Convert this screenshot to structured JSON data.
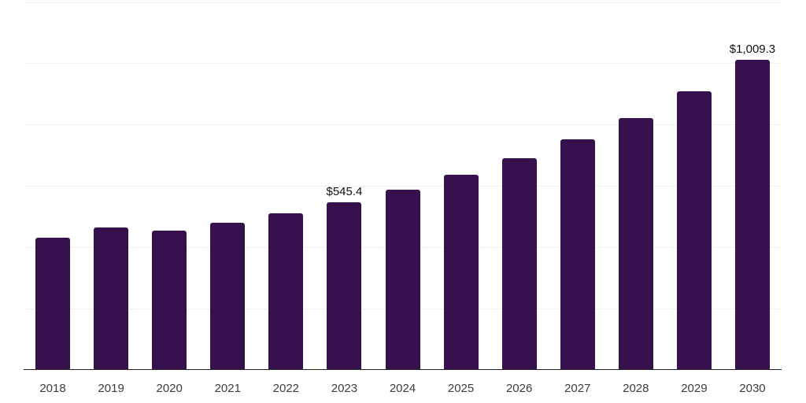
{
  "chart_data": {
    "type": "bar",
    "title": "",
    "xlabel": "",
    "ylabel": "",
    "categories": [
      "2018",
      "2019",
      "2020",
      "2021",
      "2022",
      "2023",
      "2024",
      "2025",
      "2026",
      "2027",
      "2028",
      "2029",
      "2030"
    ],
    "values": [
      430.0,
      462.0,
      453.0,
      479.0,
      509.0,
      545.4,
      587.0,
      635.0,
      688.0,
      750.0,
      821.0,
      906.0,
      1009.3
    ],
    "data_labels": {
      "2023": "$545.4",
      "2030": "$1,009.3"
    },
    "ylim": [
      0,
      1200
    ],
    "gridline_interval": 200,
    "grid": true,
    "legend": false,
    "y_tick_labels_visible": false
  },
  "colors": {
    "bar": "#36114d",
    "gridline": "#f0f0f0",
    "axis": "#222222",
    "x_label_text": "#3d3d3d",
    "value_label_text": "#111111",
    "background": "#ffffff"
  }
}
